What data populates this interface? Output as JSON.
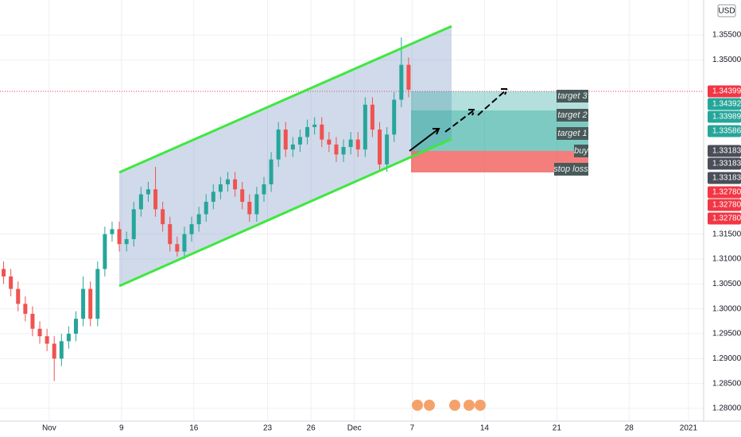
{
  "chart_data": {
    "type": "candlestick",
    "currency": "USD",
    "open": [
      1.308,
      1.3065,
      1.304,
      1.301,
      1.299,
      1.296,
      1.2945,
      1.293,
      1.29,
      1.2935,
      1.295,
      1.298,
      1.304,
      1.298,
      1.308,
      1.315,
      1.316,
      1.313,
      1.314,
      1.32,
      1.323,
      1.324,
      1.32,
      1.317,
      1.313,
      1.3115,
      1.315,
      1.317,
      1.319,
      1.3215,
      1.3235,
      1.325,
      1.326,
      1.324,
      1.3215,
      1.319,
      1.323,
      1.325,
      1.33,
      1.336,
      1.332,
      1.333,
      1.3345,
      1.3365,
      1.337,
      1.334,
      1.333,
      1.331,
      1.3325,
      1.334,
      1.332,
      1.341,
      1.336,
      1.329,
      1.335,
      1.342,
      1.349
    ],
    "high": [
      1.3095,
      1.308,
      1.3055,
      1.3025,
      1.3005,
      1.2975,
      1.296,
      1.2945,
      1.295,
      1.2965,
      1.2995,
      1.3065,
      1.3055,
      1.3095,
      1.3165,
      1.3175,
      1.3175,
      1.3155,
      1.3215,
      1.3245,
      1.3255,
      1.3285,
      1.3215,
      1.3185,
      1.3145,
      1.3165,
      1.3185,
      1.3205,
      1.323,
      1.325,
      1.3265,
      1.3275,
      1.3275,
      1.3255,
      1.323,
      1.3245,
      1.3265,
      1.3315,
      1.3375,
      1.3375,
      1.3345,
      1.336,
      1.338,
      1.3385,
      1.3385,
      1.3355,
      1.3345,
      1.334,
      1.3355,
      1.3355,
      1.3425,
      1.3425,
      1.3375,
      1.3365,
      1.3435,
      1.3545,
      1.3505
    ],
    "low": [
      1.305,
      1.3025,
      1.2995,
      1.2975,
      1.2945,
      1.293,
      1.2915,
      1.2855,
      1.2885,
      1.292,
      1.2935,
      1.2965,
      1.2965,
      1.2965,
      1.3065,
      1.3135,
      1.3115,
      1.3115,
      1.3125,
      1.3185,
      1.3215,
      1.3185,
      1.3155,
      1.3115,
      1.3105,
      1.31,
      1.3135,
      1.3155,
      1.3175,
      1.32,
      1.322,
      1.3235,
      1.3225,
      1.32,
      1.3175,
      1.3175,
      1.3215,
      1.3235,
      1.3285,
      1.3305,
      1.3305,
      1.3315,
      1.333,
      1.335,
      1.3325,
      1.3315,
      1.3295,
      1.3295,
      1.331,
      1.3305,
      1.3305,
      1.3345,
      1.3275,
      1.3275,
      1.3335,
      1.3405,
      1.3425
    ],
    "close": [
      1.3065,
      1.304,
      1.301,
      1.299,
      1.296,
      1.2945,
      1.293,
      1.29,
      1.2935,
      1.295,
      1.298,
      1.304,
      1.298,
      1.308,
      1.315,
      1.316,
      1.313,
      1.314,
      1.32,
      1.323,
      1.324,
      1.32,
      1.317,
      1.313,
      1.3115,
      1.315,
      1.317,
      1.319,
      1.3215,
      1.3235,
      1.325,
      1.326,
      1.324,
      1.3215,
      1.319,
      1.323,
      1.325,
      1.33,
      1.336,
      1.332,
      1.333,
      1.3345,
      1.3365,
      1.337,
      1.334,
      1.333,
      1.331,
      1.3325,
      1.334,
      1.332,
      1.341,
      1.336,
      1.329,
      1.335,
      1.342,
      1.349,
      1.344
    ],
    "up_color": "#26a69a",
    "down_color": "#ef5350",
    "xlim": [
      0,
      97.3
    ],
    "xticks": [
      {
        "value": 6.8,
        "label": "Nov"
      },
      {
        "value": 16.8,
        "label": "9"
      },
      {
        "value": 26.8,
        "label": "16"
      },
      {
        "value": 37,
        "label": "23"
      },
      {
        "value": 43,
        "label": "26"
      },
      {
        "value": 49,
        "label": "Dec"
      },
      {
        "value": 57,
        "label": "7"
      },
      {
        "value": 67,
        "label": "14"
      },
      {
        "value": 77,
        "label": "21"
      },
      {
        "value": 87,
        "label": "28"
      },
      {
        "value": 95.2,
        "label": "2021"
      }
    ],
    "ylim": [
      1.27745,
      1.36202
    ],
    "yticks": [
      {
        "value": 1.355,
        "label": "1.35500"
      },
      {
        "value": 1.35,
        "label": "1.35000"
      },
      {
        "value": 1.315,
        "label": "1.31500"
      },
      {
        "value": 1.31,
        "label": "1.31000"
      },
      {
        "value": 1.305,
        "label": "1.30500"
      },
      {
        "value": 1.3,
        "label": "1.30000"
      },
      {
        "value": 1.295,
        "label": "1.29500"
      },
      {
        "value": 1.29,
        "label": "1.29000"
      },
      {
        "value": 1.285,
        "label": "1.28500"
      },
      {
        "value": 1.28,
        "label": "1.28000"
      }
    ],
    "grid": true,
    "price_labels": [
      {
        "label": "1.34399",
        "color": "#f23645"
      },
      {
        "label": "1.34392",
        "color": "#26a69a"
      },
      {
        "label": "1.33989",
        "color": "#26a69a"
      },
      {
        "label": "1.33586",
        "color": "#26a69a"
      },
      {
        "label": "1.33183",
        "color": "#4a4e58"
      },
      {
        "label": "1.33183",
        "color": "#4a4e58"
      },
      {
        "label": "1.33183",
        "color": "#4a4e58"
      },
      {
        "label": "1.32780",
        "color": "#f23645"
      },
      {
        "label": "1.32780",
        "color": "#f23645"
      },
      {
        "label": "1.32780",
        "color": "#f23645"
      }
    ],
    "zone_labels": [
      "target 3",
      "target 2",
      "target 1",
      "buy",
      "stop loss"
    ]
  }
}
